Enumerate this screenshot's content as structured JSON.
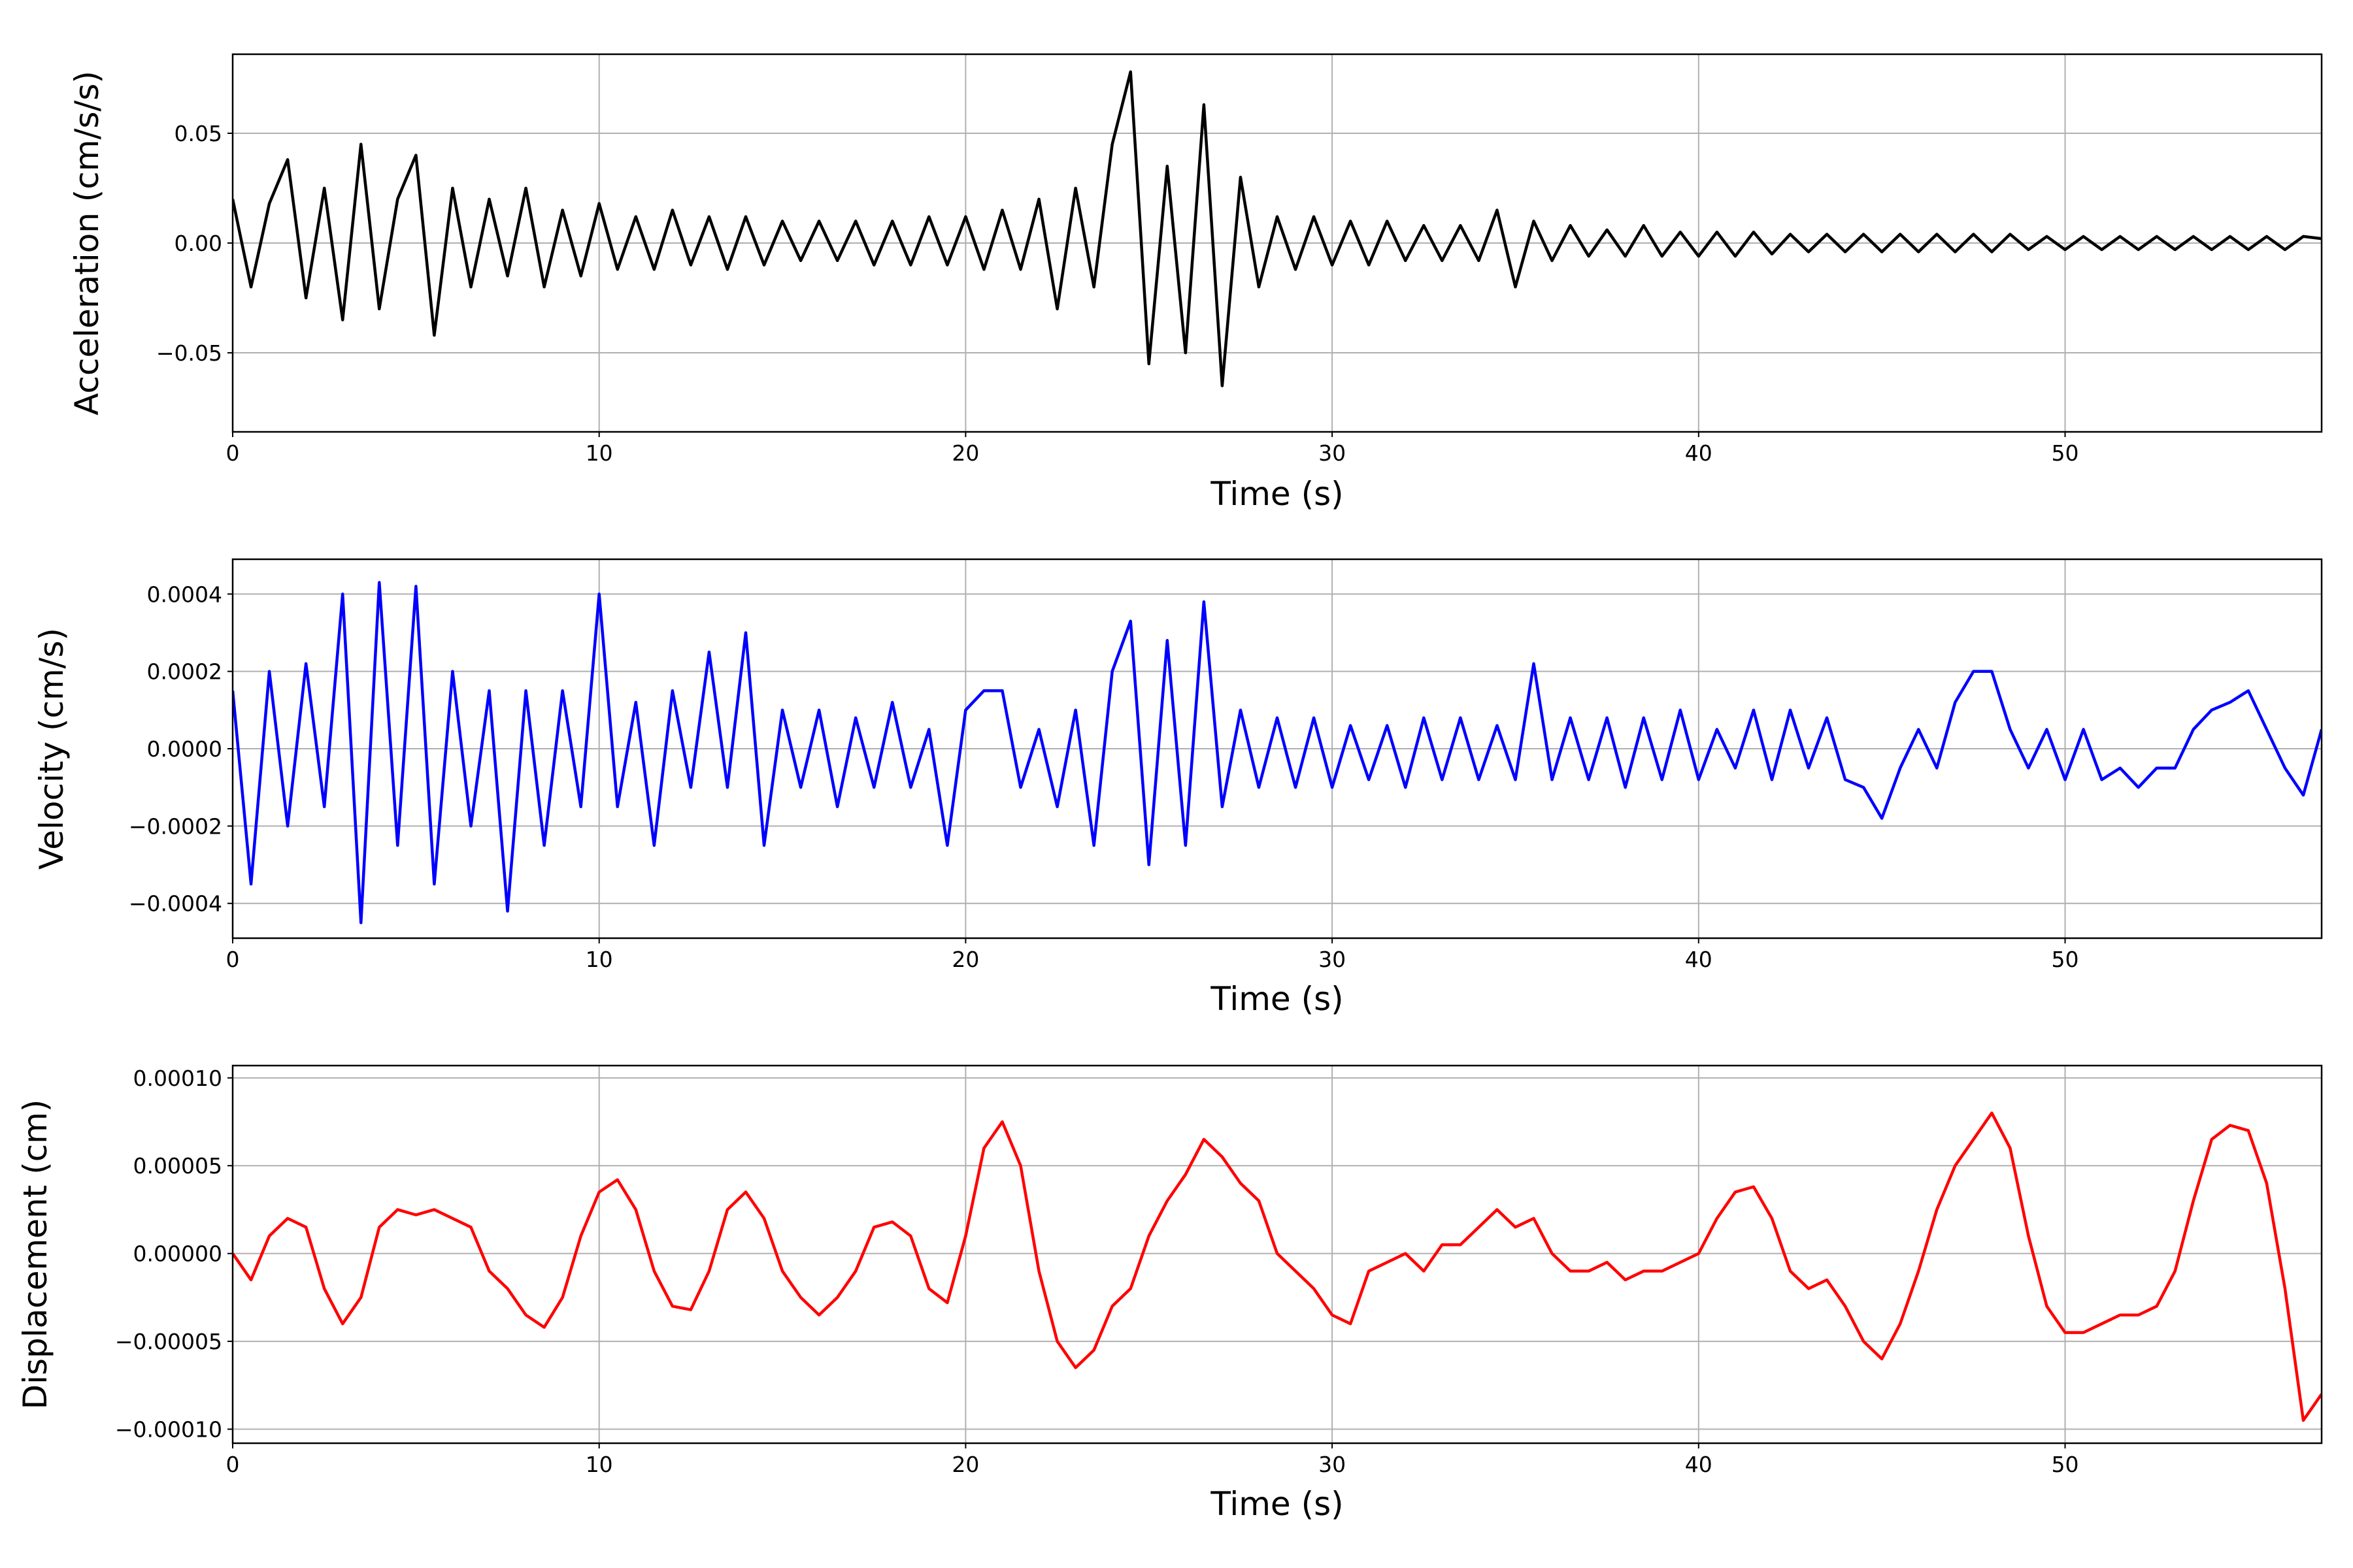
{
  "chart_data": [
    {
      "type": "line",
      "ylabel": "Acceleration (cm/s/s)",
      "xlabel": "Time (s)",
      "xlim": [
        0,
        57
      ],
      "xticks": [
        0,
        10,
        20,
        30,
        40,
        50
      ],
      "ylim": [
        -0.086,
        0.086
      ],
      "yticks": [
        {
          "value": -0.05,
          "label": "−0.05"
        },
        {
          "value": 0,
          "label": "0.00"
        },
        {
          "value": 0.05,
          "label": "0.05"
        }
      ],
      "grid": true,
      "series": [
        {
          "color": "#000000",
          "x": [
            0,
            0.5,
            1,
            1.5,
            2,
            2.5,
            3,
            3.5,
            4,
            4.5,
            5,
            5.5,
            6,
            6.5,
            7,
            7.5,
            8,
            8.5,
            9,
            9.5,
            10,
            10.5,
            11,
            11.5,
            12,
            12.5,
            13,
            13.5,
            14,
            14.5,
            15,
            15.5,
            16,
            16.5,
            17,
            17.5,
            18,
            18.5,
            19,
            19.5,
            20,
            20.5,
            21,
            21.5,
            22,
            22.5,
            23,
            23.5,
            24,
            24.5,
            25,
            25.5,
            26,
            26.5,
            27,
            27.5,
            28,
            28.5,
            29,
            29.5,
            30,
            30.5,
            31,
            31.5,
            32,
            32.5,
            33,
            33.5,
            34,
            34.5,
            35,
            35.5,
            36,
            36.5,
            37,
            37.5,
            38,
            38.5,
            39,
            39.5,
            40,
            40.5,
            41,
            41.5,
            42,
            42.5,
            43,
            43.5,
            44,
            44.5,
            45,
            45.5,
            46,
            46.5,
            47,
            47.5,
            48,
            48.5,
            49,
            49.5,
            50,
            50.5,
            51,
            51.5,
            52,
            52.5,
            53,
            53.5,
            54,
            54.5,
            55,
            55.5,
            56,
            56.5,
            57
          ],
          "values": [
            0.02,
            -0.02,
            0.018,
            0.038,
            -0.025,
            0.025,
            -0.035,
            0.045,
            -0.03,
            0.02,
            0.04,
            -0.042,
            0.025,
            -0.02,
            0.02,
            -0.015,
            0.025,
            -0.02,
            0.015,
            -0.015,
            0.018,
            -0.012,
            0.012,
            -0.012,
            0.015,
            -0.01,
            0.012,
            -0.012,
            0.012,
            -0.01,
            0.01,
            -0.008,
            0.01,
            -0.008,
            0.01,
            -0.01,
            0.01,
            -0.01,
            0.012,
            -0.01,
            0.012,
            -0.012,
            0.015,
            -0.012,
            0.02,
            -0.03,
            0.025,
            -0.02,
            0.045,
            0.078,
            -0.055,
            0.035,
            -0.05,
            0.063,
            -0.065,
            0.03,
            -0.02,
            0.012,
            -0.012,
            0.012,
            -0.01,
            0.01,
            -0.01,
            0.01,
            -0.008,
            0.008,
            -0.008,
            0.008,
            -0.008,
            0.015,
            -0.02,
            0.01,
            -0.008,
            0.008,
            -0.006,
            0.006,
            -0.006,
            0.008,
            -0.006,
            0.005,
            -0.006,
            0.005,
            -0.006,
            0.005,
            -0.005,
            0.004,
            -0.004,
            0.004,
            -0.004,
            0.004,
            -0.004,
            0.004,
            -0.004,
            0.004,
            -0.004,
            0.004,
            -0.004,
            0.004,
            -0.003,
            0.003,
            -0.003,
            0.003,
            -0.003,
            0.003,
            -0.003,
            0.003,
            -0.003,
            0.003,
            -0.003,
            0.003,
            -0.003,
            0.003,
            -0.003,
            0.003,
            0.002
          ]
        }
      ]
    },
    {
      "type": "line",
      "ylabel": "Velocity (cm/s)",
      "xlabel": "Time (s)",
      "xlim": [
        0,
        57
      ],
      "xticks": [
        0,
        10,
        20,
        30,
        40,
        50
      ],
      "ylim": [
        -0.00049,
        0.00049
      ],
      "yticks": [
        {
          "value": -0.0004,
          "label": "−0.0004"
        },
        {
          "value": -0.0002,
          "label": "−0.0002"
        },
        {
          "value": 0,
          "label": "0.0000"
        },
        {
          "value": 0.0002,
          "label": "0.0002"
        },
        {
          "value": 0.0004,
          "label": "0.0004"
        }
      ],
      "grid": true,
      "series": [
        {
          "color": "#0000ff",
          "x": [
            0,
            0.5,
            1,
            1.5,
            2,
            2.5,
            3,
            3.5,
            4,
            4.5,
            5,
            5.5,
            6,
            6.5,
            7,
            7.5,
            8,
            8.5,
            9,
            9.5,
            10,
            10.5,
            11,
            11.5,
            12,
            12.5,
            13,
            13.5,
            14,
            14.5,
            15,
            15.5,
            16,
            16.5,
            17,
            17.5,
            18,
            18.5,
            19,
            19.5,
            20,
            20.5,
            21,
            21.5,
            22,
            22.5,
            23,
            23.5,
            24,
            24.5,
            25,
            25.5,
            26,
            26.5,
            27,
            27.5,
            28,
            28.5,
            29,
            29.5,
            30,
            30.5,
            31,
            31.5,
            32,
            32.5,
            33,
            33.5,
            34,
            34.5,
            35,
            35.5,
            36,
            36.5,
            37,
            37.5,
            38,
            38.5,
            39,
            39.5,
            40,
            40.5,
            41,
            41.5,
            42,
            42.5,
            43,
            43.5,
            44,
            44.5,
            45,
            45.5,
            46,
            46.5,
            47,
            47.5,
            48,
            48.5,
            49,
            49.5,
            50,
            50.5,
            51,
            51.5,
            52,
            52.5,
            53,
            53.5,
            54,
            54.5,
            55,
            55.5,
            56,
            56.5,
            57
          ],
          "values": [
            0.00015,
            -0.00035,
            0.0002,
            -0.0002,
            0.00022,
            -0.00015,
            0.0004,
            -0.00045,
            0.00043,
            -0.00025,
            0.00042,
            -0.00035,
            0.0002,
            -0.0002,
            0.00015,
            -0.00042,
            0.00015,
            -0.00025,
            0.00015,
            -0.00015,
            0.0004,
            -0.00015,
            0.00012,
            -0.00025,
            0.00015,
            -0.0001,
            0.00025,
            -0.0001,
            0.0003,
            -0.00025,
            0.0001,
            -0.0001,
            0.0001,
            -0.00015,
            8e-05,
            -0.0001,
            0.00012,
            -0.0001,
            5e-05,
            -0.00025,
            0.0001,
            0.00015,
            0.00015,
            -0.0001,
            5e-05,
            -0.00015,
            0.0001,
            -0.00025,
            0.0002,
            0.00033,
            -0.0003,
            0.00028,
            -0.00025,
            0.00038,
            -0.00015,
            0.0001,
            -0.0001,
            8e-05,
            -0.0001,
            8e-05,
            -0.0001,
            6e-05,
            -8e-05,
            6e-05,
            -0.0001,
            8e-05,
            -8e-05,
            8e-05,
            -8e-05,
            6e-05,
            -8e-05,
            0.00022,
            -8e-05,
            8e-05,
            -8e-05,
            8e-05,
            -0.0001,
            8e-05,
            -8e-05,
            0.0001,
            -8e-05,
            5e-05,
            -5e-05,
            0.0001,
            -8e-05,
            0.0001,
            -5e-05,
            8e-05,
            -8e-05,
            -0.0001,
            -0.00018,
            -5e-05,
            5e-05,
            -5e-05,
            0.00012,
            0.0002,
            0.0002,
            5e-05,
            -5e-05,
            5e-05,
            -8e-05,
            5e-05,
            -8e-05,
            -5e-05,
            -0.0001,
            -5e-05,
            -5e-05,
            5e-05,
            0.0001,
            0.00012,
            0.00015,
            5e-05,
            -5e-05,
            -0.00012,
            5e-05
          ]
        }
      ]
    },
    {
      "type": "line",
      "ylabel": "Displacement (cm)",
      "xlabel": "Time (s)",
      "xlim": [
        0,
        57
      ],
      "xticks": [
        0,
        10,
        20,
        30,
        40,
        50
      ],
      "ylim": [
        -0.000108,
        0.000107
      ],
      "yticks": [
        {
          "value": -0.0001,
          "label": "−0.00010"
        },
        {
          "value": -5e-05,
          "label": "−0.00005"
        },
        {
          "value": 0,
          "label": "0.00000"
        },
        {
          "value": 5e-05,
          "label": "0.00005"
        },
        {
          "value": 0.0001,
          "label": "0.00010"
        }
      ],
      "grid": true,
      "series": [
        {
          "color": "#ff0000",
          "x": [
            0,
            0.5,
            1,
            1.5,
            2,
            2.5,
            3,
            3.5,
            4,
            4.5,
            5,
            5.5,
            6,
            6.5,
            7,
            7.5,
            8,
            8.5,
            9,
            9.5,
            10,
            10.5,
            11,
            11.5,
            12,
            12.5,
            13,
            13.5,
            14,
            14.5,
            15,
            15.5,
            16,
            16.5,
            17,
            17.5,
            18,
            18.5,
            19,
            19.5,
            20,
            20.5,
            21,
            21.5,
            22,
            22.5,
            23,
            23.5,
            24,
            24.5,
            25,
            25.5,
            26,
            26.5,
            27,
            27.5,
            28,
            28.5,
            29,
            29.5,
            30,
            30.5,
            31,
            31.5,
            32,
            32.5,
            33,
            33.5,
            34,
            34.5,
            35,
            35.5,
            36,
            36.5,
            37,
            37.5,
            38,
            38.5,
            39,
            39.5,
            40,
            40.5,
            41,
            41.5,
            42,
            42.5,
            43,
            43.5,
            44,
            44.5,
            45,
            45.5,
            46,
            46.5,
            47,
            47.5,
            48,
            48.5,
            49,
            49.5,
            50,
            50.5,
            51,
            51.5,
            52,
            52.5,
            53,
            53.5,
            54,
            54.5,
            55,
            55.5,
            56,
            56.5,
            57
          ],
          "values": [
            0,
            -1.5e-05,
            1e-05,
            2e-05,
            1.5e-05,
            -2e-05,
            -4e-05,
            -2.5e-05,
            1.5e-05,
            2.5e-05,
            2.2e-05,
            2.5e-05,
            2e-05,
            1.5e-05,
            -1e-05,
            -2e-05,
            -3.5e-05,
            -4.2e-05,
            -2.5e-05,
            1e-05,
            3.5e-05,
            4.2e-05,
            2.5e-05,
            -1e-05,
            -3e-05,
            -3.2e-05,
            -1e-05,
            2.5e-05,
            3.5e-05,
            2e-05,
            -1e-05,
            -2.5e-05,
            -3.5e-05,
            -2.5e-05,
            -1e-05,
            1.5e-05,
            1.8e-05,
            1e-05,
            -2e-05,
            -2.8e-05,
            1e-05,
            6e-05,
            7.5e-05,
            5e-05,
            -1e-05,
            -5e-05,
            -6.5e-05,
            -5.5e-05,
            -3e-05,
            -2e-05,
            1e-05,
            3e-05,
            4.5e-05,
            6.5e-05,
            5.5e-05,
            4e-05,
            3e-05,
            0,
            -1e-05,
            -2e-05,
            -3.5e-05,
            -4e-05,
            -1e-05,
            -5e-06,
            0,
            -1e-05,
            5e-06,
            5e-06,
            1.5e-05,
            2.5e-05,
            1.5e-05,
            2e-05,
            0,
            -1e-05,
            -1e-05,
            -5e-06,
            -1.5e-05,
            -1e-05,
            -1e-05,
            -5e-06,
            0,
            2e-05,
            3.5e-05,
            3.8e-05,
            2e-05,
            -1e-05,
            -2e-05,
            -1.5e-05,
            -3e-05,
            -5e-05,
            -6e-05,
            -4e-05,
            -1e-05,
            2.5e-05,
            5e-05,
            6.5e-05,
            8e-05,
            6e-05,
            1e-05,
            -3e-05,
            -4.5e-05,
            -4.5e-05,
            -4e-05,
            -3.5e-05,
            -3.5e-05,
            -3e-05,
            -1e-05,
            3e-05,
            6.5e-05,
            7.3e-05,
            7e-05,
            4e-05,
            -2e-05,
            -9.5e-05,
            -8e-05
          ]
        }
      ]
    }
  ]
}
